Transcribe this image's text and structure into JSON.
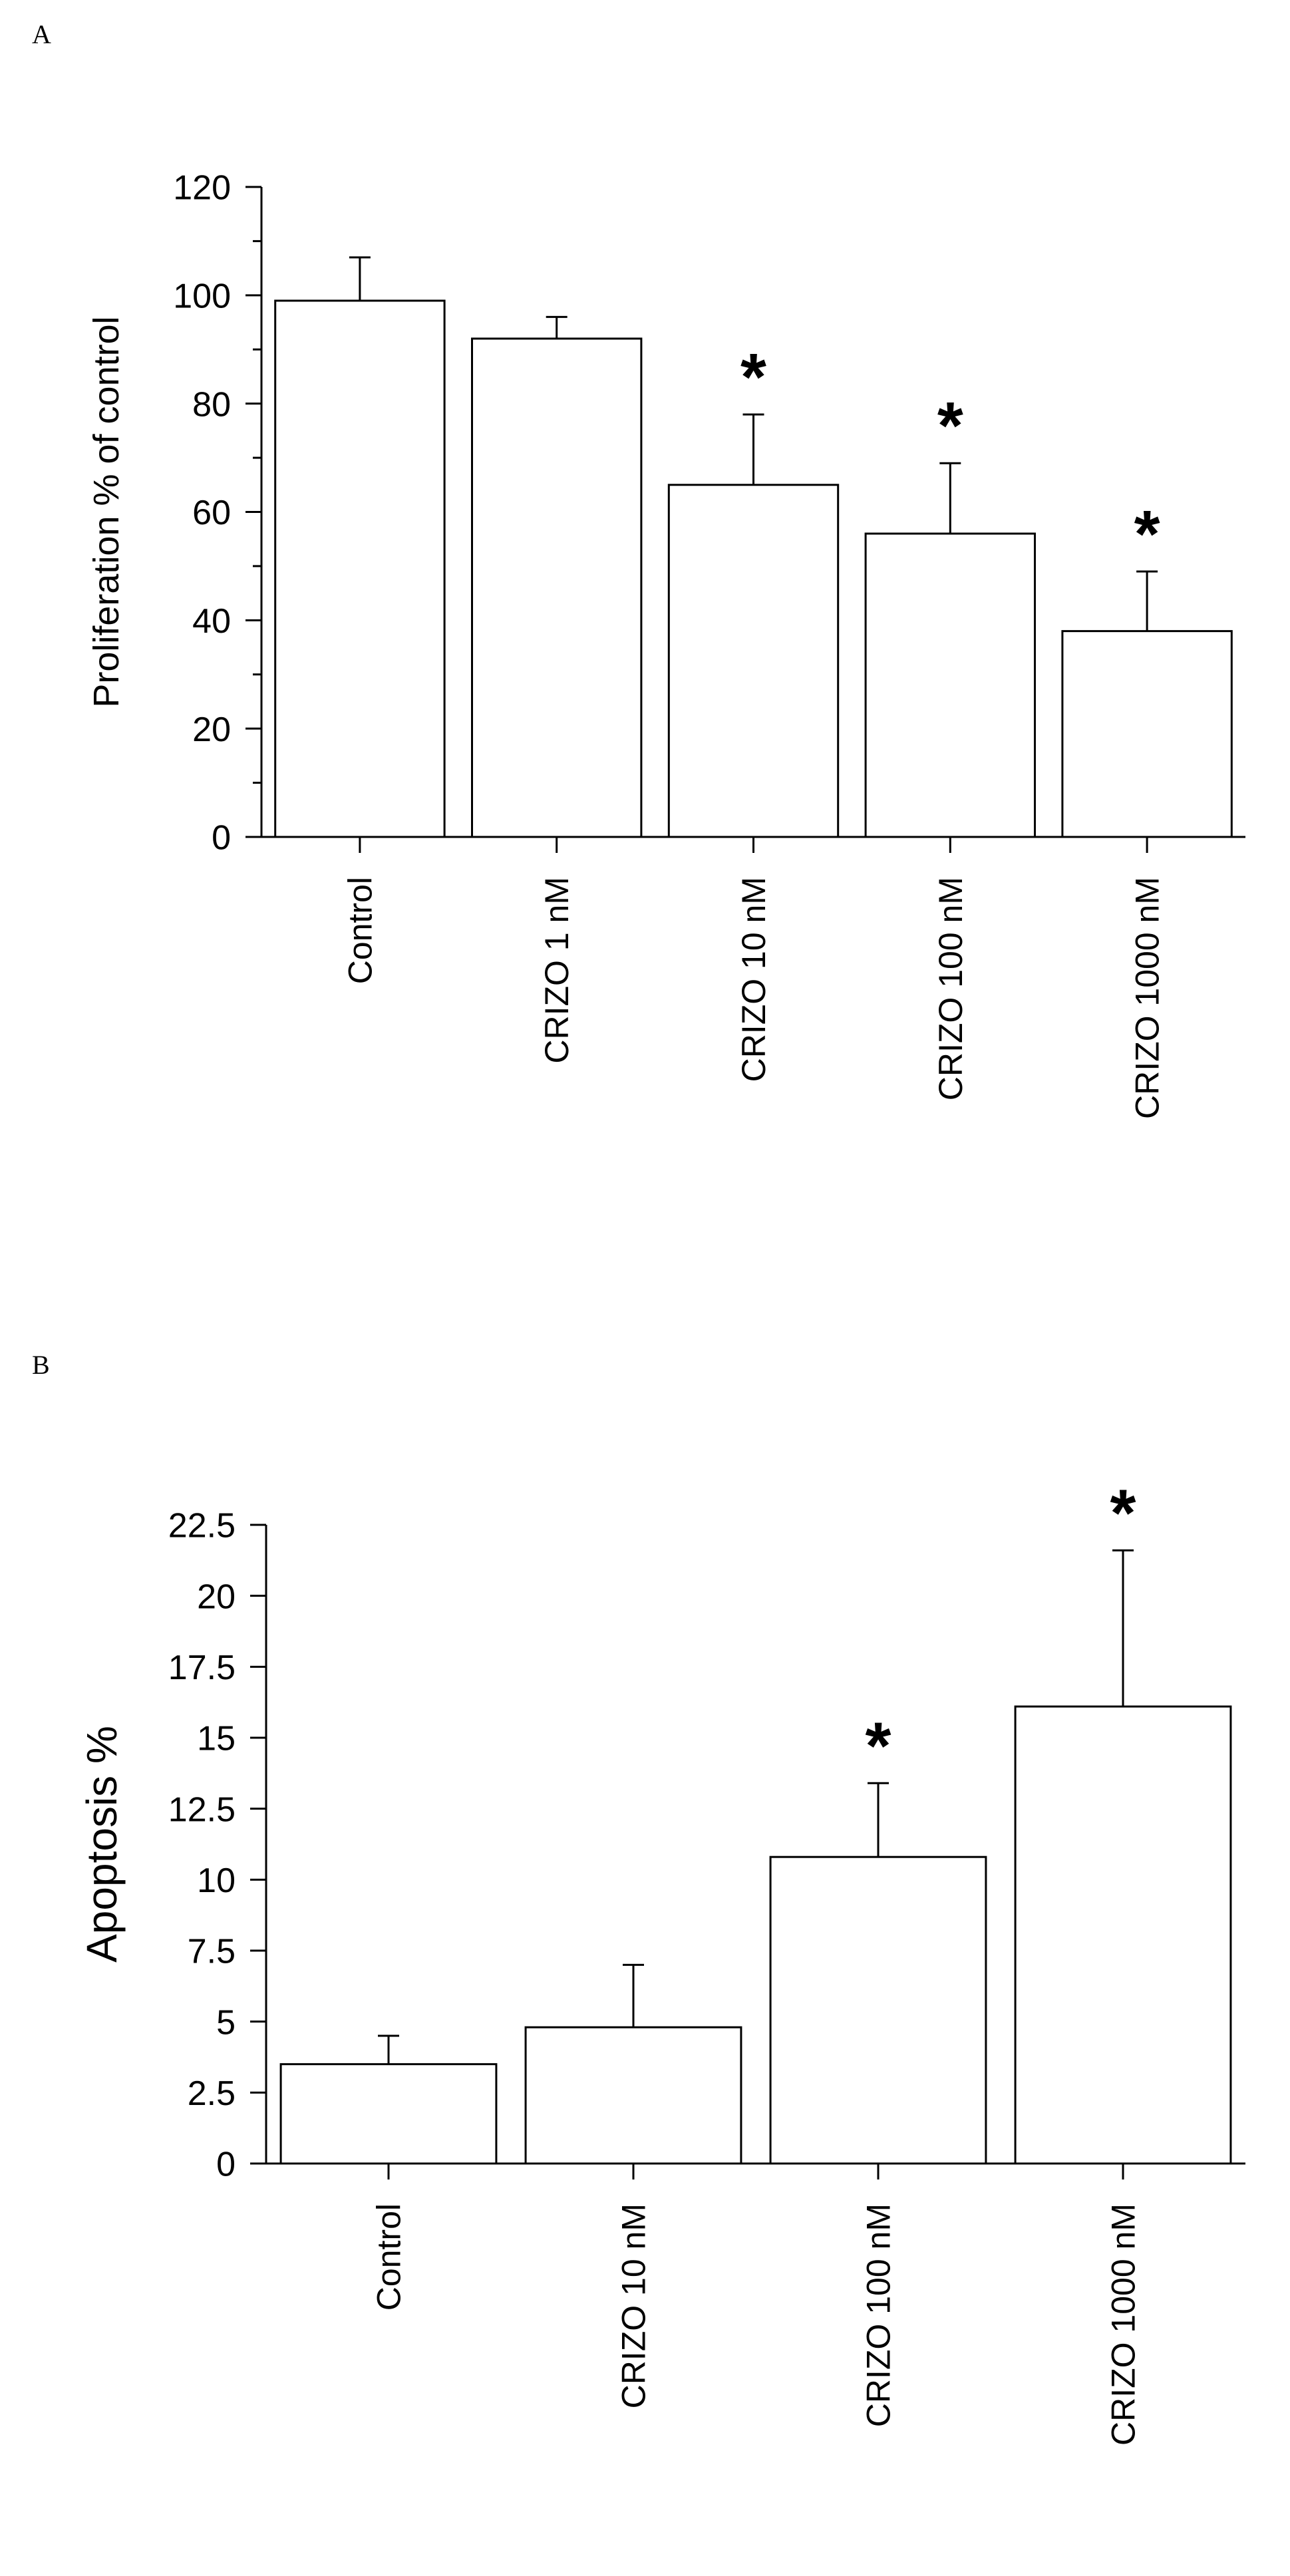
{
  "panels": {
    "a": {
      "letter": "A"
    },
    "b": {
      "letter": "B"
    }
  },
  "colors": {
    "bar_fill": "#ffffff",
    "stroke": "#000000"
  },
  "chart_data": [
    {
      "type": "bar",
      "title": "",
      "xlabel": "",
      "ylabel": "Proliferation % of control",
      "categories": [
        "Control",
        "CRIZO 1  nM",
        "CRIZO 10 nM",
        "CRIZO 100 nM",
        "CRIZO 1000 nM"
      ],
      "values": [
        99,
        92,
        65,
        56,
        38
      ],
      "errors": [
        8,
        4,
        13,
        13,
        11
      ],
      "significance": [
        "",
        "",
        "*",
        "*",
        "*"
      ],
      "ylim": [
        0,
        120
      ],
      "yticks": [
        0,
        20,
        40,
        60,
        80,
        100,
        120
      ],
      "ytick_labels": [
        "0",
        "20",
        "40",
        "60",
        "80",
        "100",
        "120"
      ],
      "minor_ticks": true,
      "grid": false,
      "legend": "none"
    },
    {
      "type": "bar",
      "title": "",
      "xlabel": "",
      "ylabel": "Apoptosis %",
      "categories": [
        "Control",
        "CRIZO    10 nM",
        "CRIZO    100 nM",
        "CRIZO    1000 nM"
      ],
      "values": [
        3.5,
        4.8,
        10.8,
        16.1
      ],
      "errors": [
        1.0,
        2.2,
        2.6,
        5.5
      ],
      "significance": [
        "",
        "",
        "*",
        "*"
      ],
      "ylim": [
        0,
        22.5
      ],
      "yticks": [
        0,
        2.5,
        5,
        7.5,
        10,
        12.5,
        15,
        17.5,
        20,
        22.5
      ],
      "ytick_labels": [
        "0",
        "2.5",
        "5",
        "7.5",
        "10",
        "12.5",
        "15",
        "17.5",
        "20",
        "22.5"
      ],
      "minor_ticks": false,
      "grid": false,
      "legend": "none"
    }
  ]
}
